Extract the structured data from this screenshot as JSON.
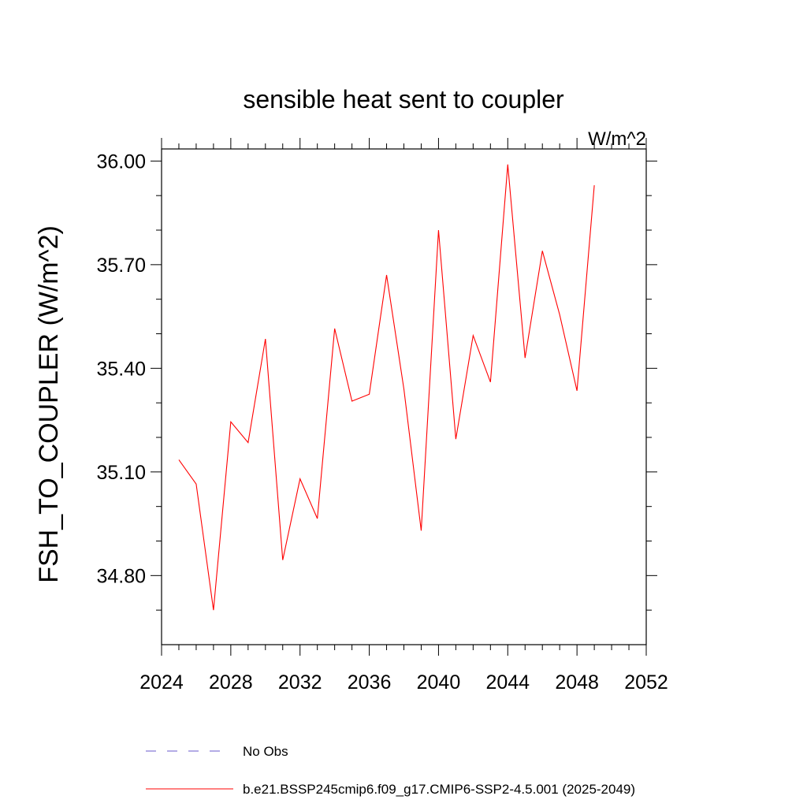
{
  "chart_data": {
    "type": "line",
    "title": "sensible heat sent to coupler",
    "units_label": "W/m^2",
    "ylabel": "FSH_TO_COUPLER  (W/m^2)",
    "xlabel": "",
    "xlim": [
      2024,
      2052
    ],
    "ylim": [
      34.6,
      36.035
    ],
    "x_ticks": [
      2024,
      2028,
      2032,
      2036,
      2040,
      2044,
      2048,
      2052
    ],
    "x_tick_labels": [
      "2024",
      "2028",
      "2032",
      "2036",
      "2040",
      "2044",
      "2048",
      "2052"
    ],
    "y_ticks": [
      34.8,
      35.1,
      35.4,
      35.7,
      36.0
    ],
    "y_tick_labels": [
      "34.80",
      "35.10",
      "35.40",
      "35.70",
      "36.00"
    ],
    "grid": false,
    "legend_position": "bottom",
    "series": [
      {
        "name": "b.e21.BSSP245cmip6.f09_g17.CMIP6-SSP2-4.5.001 (2025-2049)",
        "color": "#ff0000",
        "style": "solid",
        "x": [
          2025,
          2026,
          2027,
          2028,
          2029,
          2030,
          2031,
          2032,
          2033,
          2034,
          2035,
          2036,
          2037,
          2038,
          2039,
          2040,
          2041,
          2042,
          2043,
          2044,
          2045,
          2046,
          2047,
          2048,
          2049
        ],
        "y": [
          35.135,
          35.065,
          34.7,
          35.245,
          35.185,
          35.485,
          34.845,
          35.08,
          34.965,
          35.515,
          35.305,
          35.325,
          35.67,
          35.34,
          34.93,
          35.8,
          35.195,
          35.495,
          35.36,
          35.99,
          35.43,
          35.74,
          35.555,
          35.335,
          35.93
        ]
      },
      {
        "name": "No Obs",
        "color": "#6a5acd",
        "style": "dashed",
        "x": [],
        "y": []
      }
    ]
  }
}
